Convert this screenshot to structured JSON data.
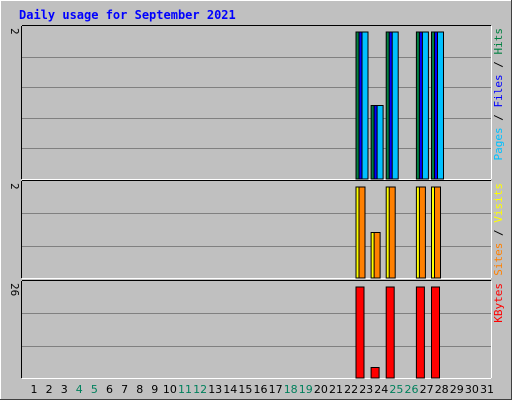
{
  "chart_data": [
    {
      "type": "bar",
      "title": "Daily usage for September 2021",
      "categories": [
        "1",
        "2",
        "3",
        "4",
        "5",
        "6",
        "7",
        "8",
        "9",
        "10",
        "11",
        "12",
        "13",
        "14",
        "15",
        "16",
        "17",
        "18",
        "19",
        "20",
        "21",
        "22",
        "23",
        "24",
        "25",
        "26",
        "27",
        "28",
        "29",
        "30",
        "31"
      ],
      "weekend_days": [
        "4",
        "5",
        "11",
        "12",
        "18",
        "19",
        "25",
        "26"
      ],
      "panels": [
        {
          "id": "pages-files-hits",
          "y_max_label": "2",
          "ymax": 2,
          "legend": [
            {
              "label": "Hits",
              "color": "#008040"
            },
            {
              "label": "Files",
              "color": "#0000ff"
            },
            {
              "label": "Pages",
              "color": "#00c0ff"
            }
          ],
          "series": [
            {
              "name": "Hits",
              "color": "#008040",
              "values": [
                0,
                0,
                0,
                0,
                0,
                0,
                0,
                0,
                0,
                0,
                0,
                0,
                0,
                0,
                0,
                0,
                0,
                0,
                0,
                0,
                0,
                0,
                2,
                1,
                2,
                0,
                2,
                2,
                0,
                0,
                0
              ]
            },
            {
              "name": "Files",
              "color": "#0000ff",
              "values": [
                0,
                0,
                0,
                0,
                0,
                0,
                0,
                0,
                0,
                0,
                0,
                0,
                0,
                0,
                0,
                0,
                0,
                0,
                0,
                0,
                0,
                0,
                2,
                1,
                2,
                0,
                2,
                2,
                0,
                0,
                0
              ]
            },
            {
              "name": "Pages",
              "color": "#00c0ff",
              "values": [
                0,
                0,
                0,
                0,
                0,
                0,
                0,
                0,
                0,
                0,
                0,
                0,
                0,
                0,
                0,
                0,
                0,
                0,
                0,
                0,
                0,
                0,
                2,
                1,
                2,
                0,
                2,
                2,
                0,
                0,
                0
              ]
            }
          ]
        },
        {
          "id": "visits-sites",
          "y_max_label": "2",
          "ymax": 2,
          "legend": [
            {
              "label": "Visits",
              "color": "#ffff00"
            },
            {
              "label": "Sites",
              "color": "#ff8000"
            }
          ],
          "series": [
            {
              "name": "Visits",
              "color": "#ffff00",
              "values": [
                0,
                0,
                0,
                0,
                0,
                0,
                0,
                0,
                0,
                0,
                0,
                0,
                0,
                0,
                0,
                0,
                0,
                0,
                0,
                0,
                0,
                0,
                2,
                1,
                2,
                0,
                2,
                2,
                0,
                0,
                0
              ]
            },
            {
              "name": "Sites",
              "color": "#ff8000",
              "values": [
                0,
                0,
                0,
                0,
                0,
                0,
                0,
                0,
                0,
                0,
                0,
                0,
                0,
                0,
                0,
                0,
                0,
                0,
                0,
                0,
                0,
                0,
                2,
                1,
                2,
                0,
                2,
                2,
                0,
                0,
                0
              ]
            }
          ]
        },
        {
          "id": "kbytes",
          "y_max_label": "26",
          "ymax": 26,
          "legend": [
            {
              "label": "KBytes",
              "color": "#ff0000"
            }
          ],
          "series": [
            {
              "name": "KBytes",
              "color": "#ff0000",
              "values": [
                0,
                0,
                0,
                0,
                0,
                0,
                0,
                0,
                0,
                0,
                0,
                0,
                0,
                0,
                0,
                0,
                0,
                0,
                0,
                0,
                0,
                0,
                26,
                3,
                26,
                0,
                26,
                26,
                0,
                0,
                0
              ]
            }
          ]
        }
      ],
      "grid": true
    }
  ],
  "colors": {
    "background": "#c0c0c0",
    "title": "#0000ff",
    "axis_label": "#000000",
    "weekend_label": "#00805c",
    "grid": "#808080",
    "separator": "#000000"
  }
}
